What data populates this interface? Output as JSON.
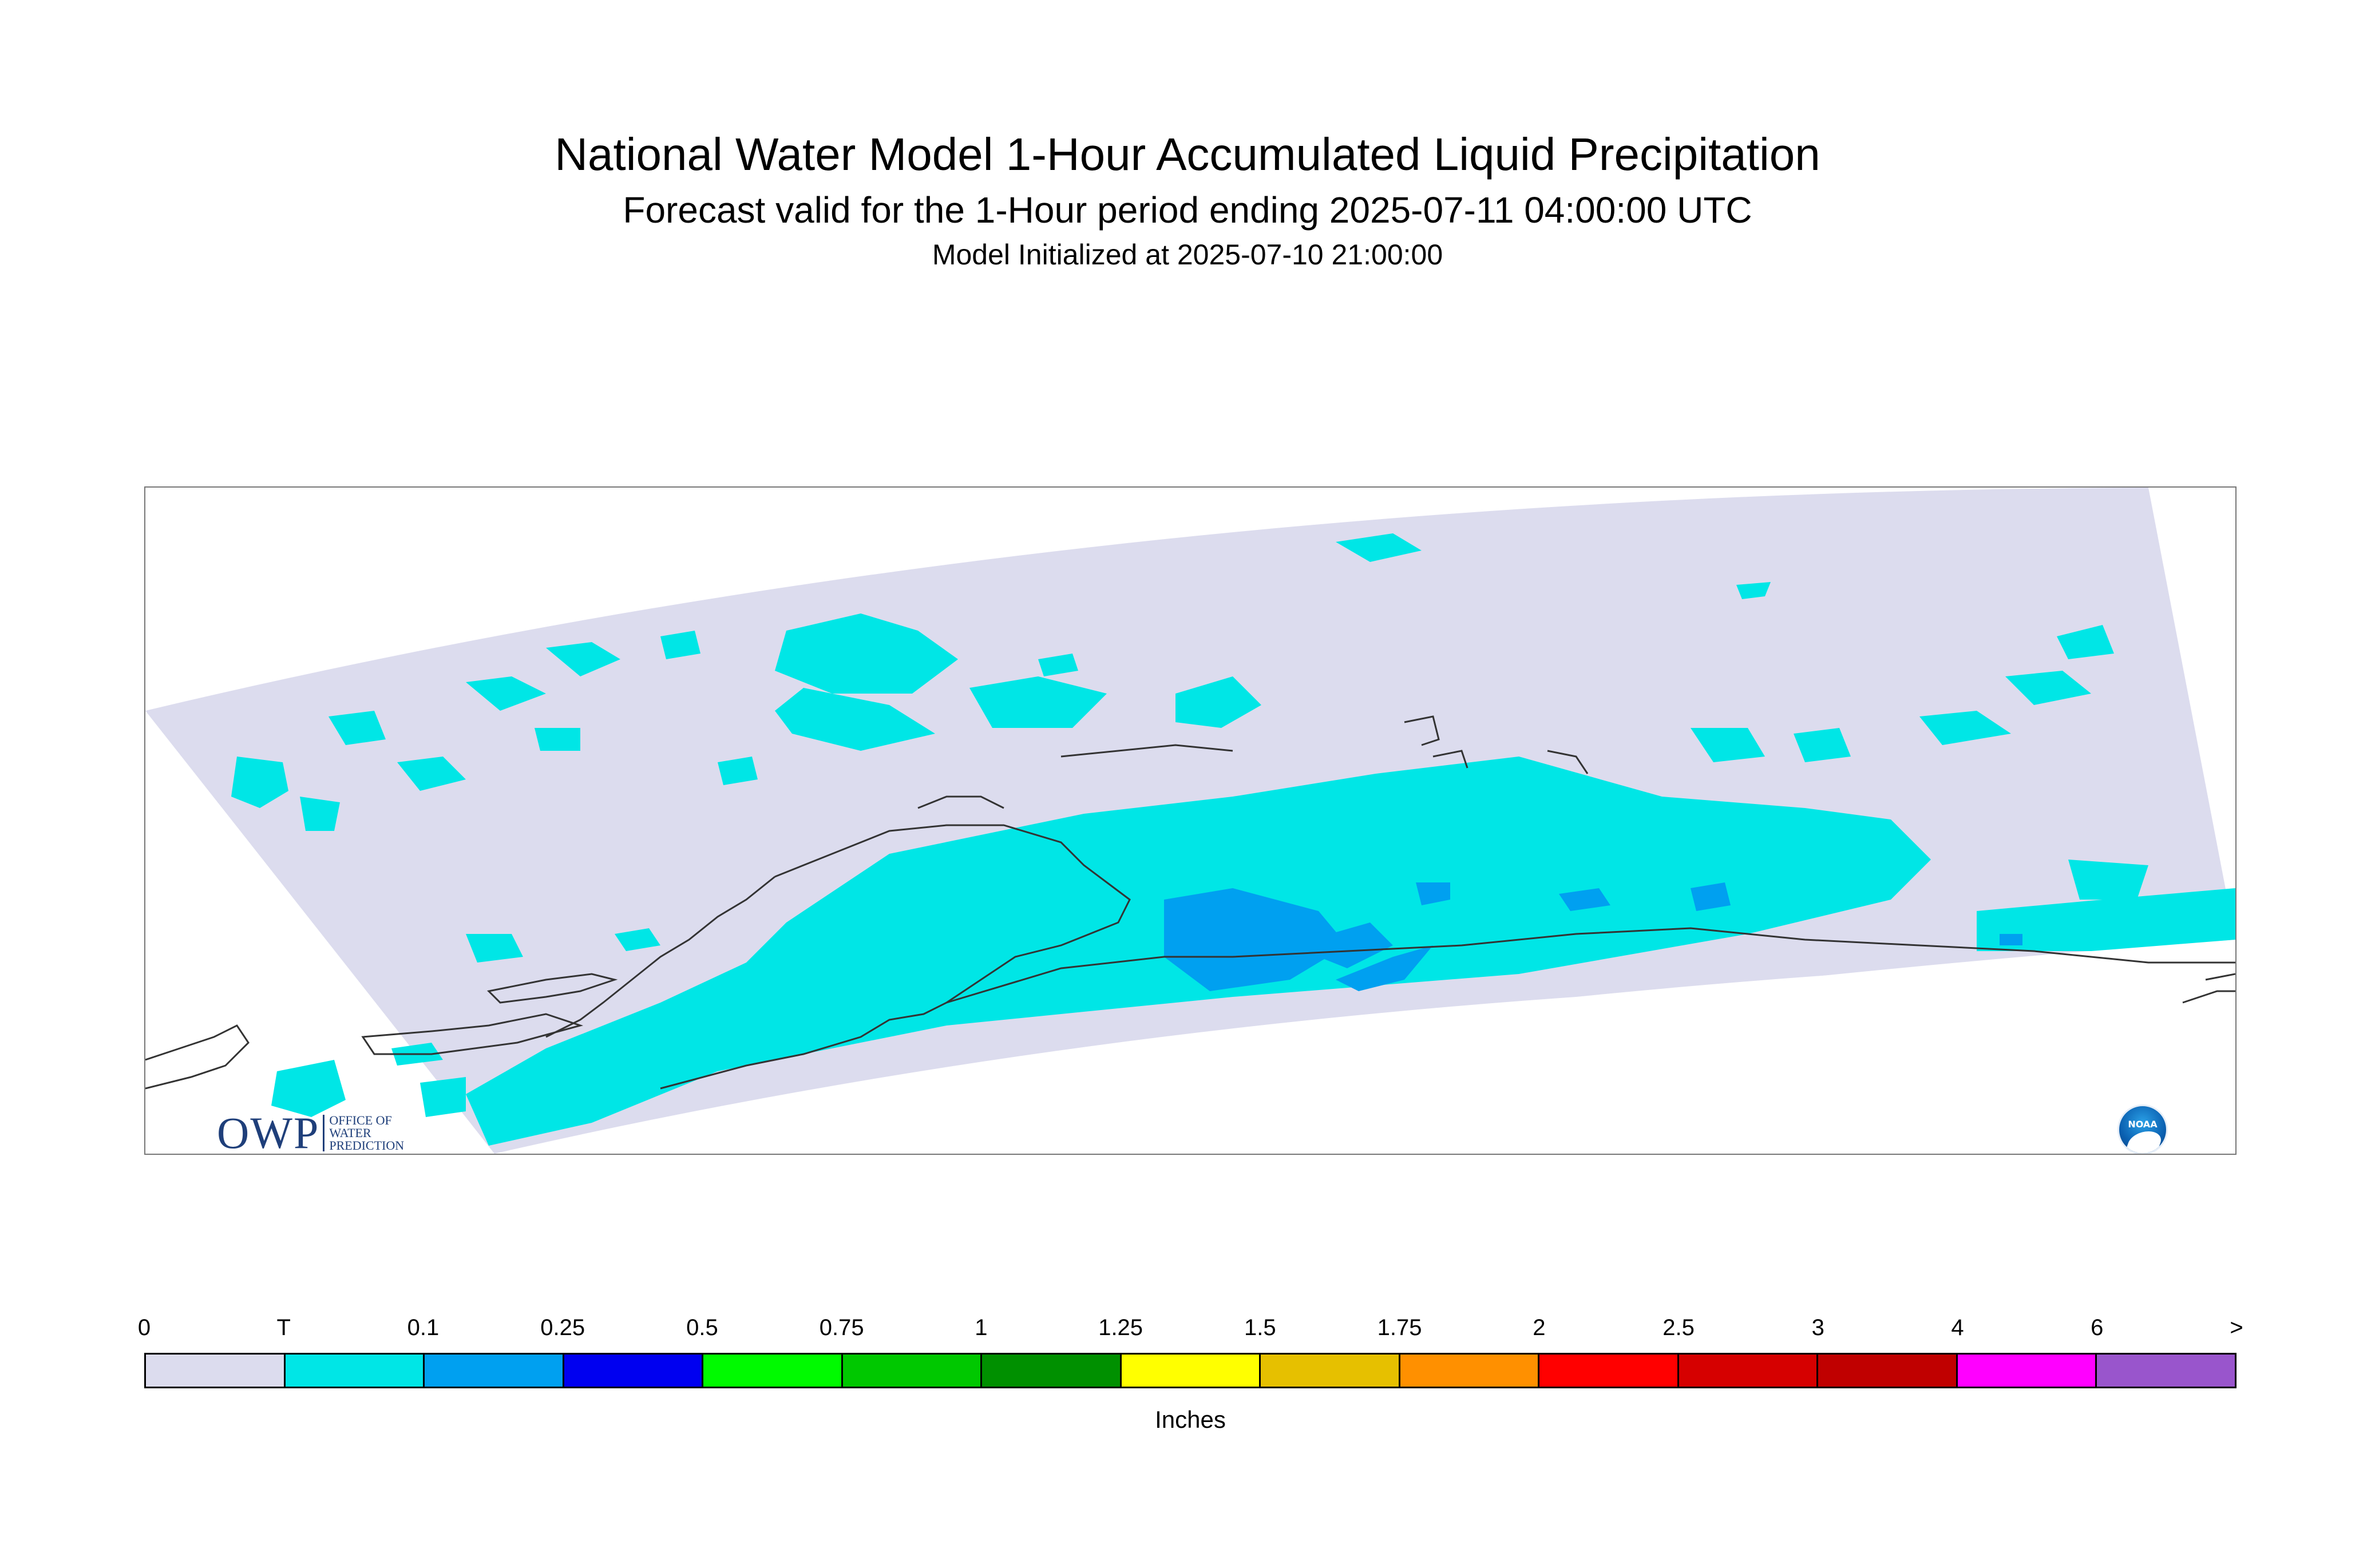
{
  "titles": {
    "main": "National Water Model 1-Hour Accumulated Liquid Precipitation",
    "sub": "Forecast valid for the 1-Hour period ending 2025-07-11 04:00:00 UTC",
    "init": "Model Initialized at 2025-07-10 21:00:00"
  },
  "logos": {
    "owp_mark": "OWP",
    "owp_text": [
      "OFFICE OF",
      "WATER",
      "PREDICTION"
    ],
    "noaa": "NOAA"
  },
  "map": {
    "domain_fill": "#dcdcee",
    "trace_color": "#00e6e6",
    "light_color": "#00a0f0",
    "coastline_color": "#333333"
  },
  "legend": {
    "labels": [
      "0",
      "T",
      "0.1",
      "0.25",
      "0.5",
      "0.75",
      "1",
      "1.25",
      "1.5",
      "1.75",
      "2",
      "2.5",
      "3",
      "4",
      "6",
      ">"
    ],
    "colors": [
      "#dcdcee",
      "#00e6e6",
      "#00a0f0",
      "#0000f0",
      "#00fa00",
      "#00c800",
      "#009000",
      "#ffff00",
      "#e6c000",
      "#ff9000",
      "#ff0000",
      "#d60000",
      "#c00000",
      "#ff00ff",
      "#9955cc"
    ],
    "units": "Inches"
  }
}
